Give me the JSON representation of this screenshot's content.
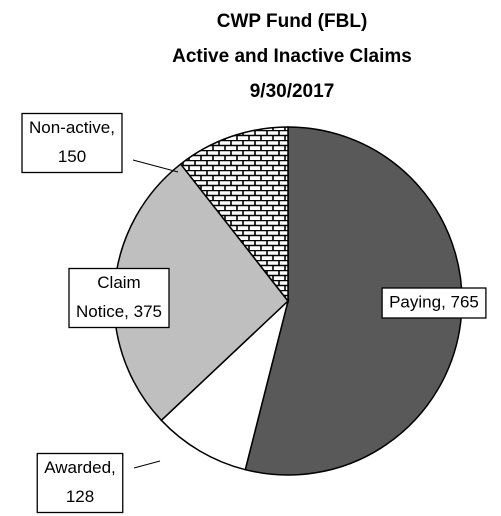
{
  "chart_data": {
    "type": "pie",
    "title": [
      "CWP Fund (FBL)",
      "Active and Inactive Claims",
      "9/30/2017"
    ],
    "values": [
      765,
      128,
      375,
      150
    ],
    "value_labels": [
      [
        "Paying, 765"
      ],
      [
        "Awarded,",
        "128"
      ],
      [
        "Claim",
        "Notice, 375"
      ],
      [
        "Non-active,",
        "150"
      ]
    ],
    "colors": [
      "#595959",
      "#ffffff",
      "#bfbfbf",
      "brick"
    ],
    "start_angle": 0,
    "direction": "clockwise"
  }
}
